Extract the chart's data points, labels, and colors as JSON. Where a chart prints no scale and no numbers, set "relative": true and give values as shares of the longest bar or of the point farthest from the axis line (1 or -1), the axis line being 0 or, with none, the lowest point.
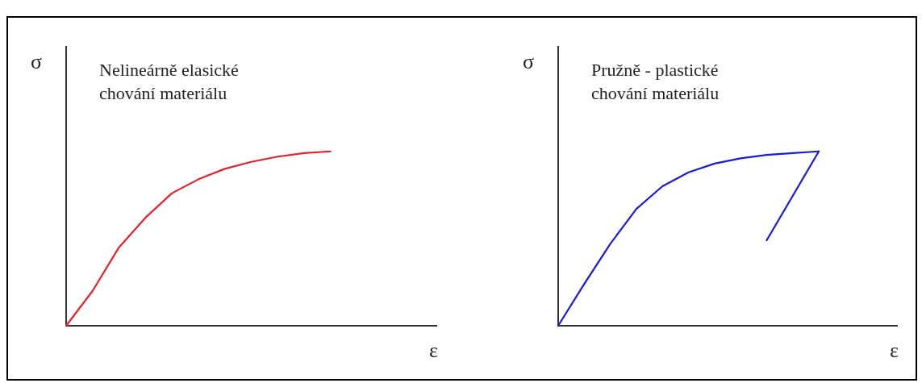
{
  "chart_data": [
    {
      "type": "line",
      "relative": true,
      "title": "Nelineárně elasické\nchování materiálu",
      "xlabel": "ε",
      "ylabel": "σ",
      "marker": "none",
      "categories": [
        null,
        null,
        null,
        null,
        null,
        null,
        null,
        null,
        null,
        null,
        null,
        null,
        null,
        null,
        null
      ],
      "series": [
        {
          "color": "#e8202a",
          "values": [
            0,
            0.2,
            0.45,
            0.62,
            0.76,
            0.84,
            0.9,
            0.94,
            0.97,
            0.99,
            1,
            null,
            null,
            null,
            null
          ]
        }
      ]
    },
    {
      "type": "line",
      "relative": true,
      "title": "Pružně - plastické\nchování materiálu",
      "xlabel": "ε",
      "ylabel": "σ",
      "marker": "none",
      "categories": [
        null,
        null,
        null,
        null,
        null,
        null,
        null,
        null,
        null,
        null,
        null,
        null,
        null,
        null
      ],
      "series": [
        {
          "color": "#1a1adc",
          "values": [
            0,
            0.24,
            0.47,
            0.67,
            0.8,
            0.88,
            0.93,
            0.96,
            0.98,
            0.99,
            1,
            null,
            null,
            null
          ]
        },
        {
          "color": "#1a1adc",
          "values": [
            null,
            null,
            null,
            null,
            null,
            null,
            null,
            null,
            0.49,
            null,
            1,
            null,
            null,
            null
          ]
        }
      ]
    }
  ]
}
